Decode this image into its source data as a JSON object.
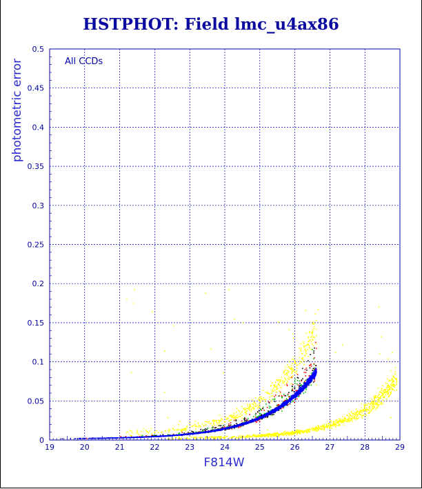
{
  "title": "HSTPHOT: Field lmc_u4ax86",
  "chart_data": {
    "type": "scatter",
    "title": "HSTPHOT: Field lmc_u4ax86",
    "xlabel": "F814W",
    "ylabel": "photometric error",
    "xlim": [
      19,
      29
    ],
    "ylim": [
      0,
      0.5
    ],
    "x_ticks": [
      "19",
      "20",
      "21",
      "22",
      "23",
      "24",
      "25",
      "26",
      "27",
      "28",
      "29"
    ],
    "y_ticks": [
      "0",
      "0.05",
      "0.1",
      "0.15",
      "0.2",
      "0.25",
      "0.3",
      "0.35",
      "0.4",
      "0.45",
      "0.5"
    ],
    "grid": true,
    "annotation": "All CCDs",
    "series": [
      {
        "color": "#ffff00",
        "shape": "upper-band",
        "mag_range": [
          21.0,
          26.6
        ],
        "error_cap": 0.215
      },
      {
        "color": "#ffff00",
        "shape": "lower-band",
        "mag_range": [
          22.0,
          28.9
        ],
        "error_cap": 0.215
      },
      {
        "color": "#ff0000",
        "shape": "main-sequence",
        "mag_range": [
          19.3,
          26.6
        ],
        "error_cap": 0.215
      },
      {
        "color": "#00c000",
        "shape": "main-sequence",
        "mag_range": [
          19.3,
          26.6
        ],
        "error_cap": 0.215
      },
      {
        "color": "#000000",
        "shape": "main-sequence",
        "mag_range": [
          19.3,
          26.6
        ],
        "error_cap": 0.215
      },
      {
        "color": "#0000ff",
        "shape": "main-sequence",
        "mag_range": [
          19.3,
          26.6
        ],
        "error_cap": 0.215
      }
    ]
  }
}
